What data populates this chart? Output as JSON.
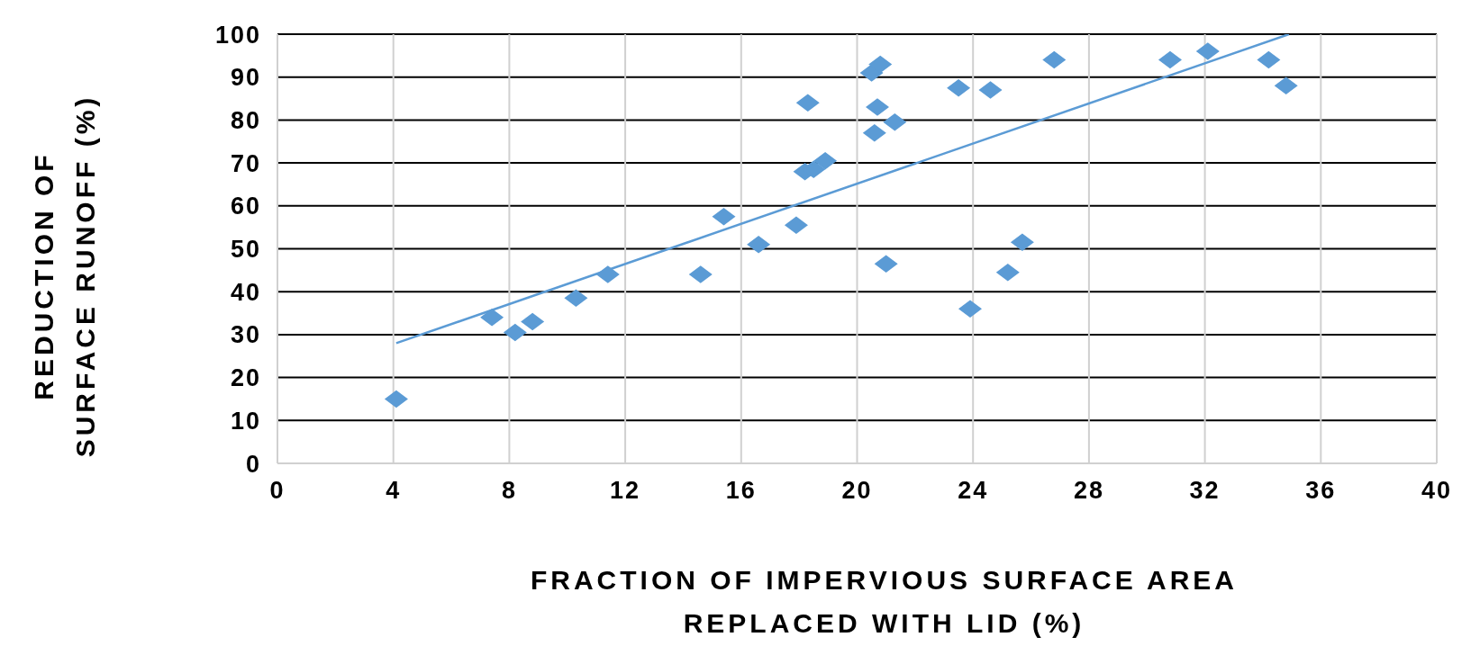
{
  "chart_data": {
    "type": "scatter",
    "xlabel": "FRACTION OF IMPERVIOUS SURFACE AREA REPLACED WITH LID (%)",
    "ylabel": "REDUCTION OF SURFACE RUNOFF (%)",
    "xlim": [
      0,
      40
    ],
    "xticks": [
      0,
      4,
      8,
      12,
      16,
      20,
      24,
      28,
      32,
      36,
      40
    ],
    "ylim": [
      0,
      100
    ],
    "yticks": [
      0,
      10,
      20,
      30,
      40,
      50,
      60,
      70,
      80,
      90,
      100
    ],
    "grid": true,
    "series": [
      {
        "marker": "diamond",
        "color": "#5b9bd5",
        "x": [
          4.1,
          7.4,
          8.2,
          8.8,
          10.3,
          11.4,
          14.6,
          15.4,
          16.6,
          17.9,
          18.3,
          18.2,
          18.5,
          18.9,
          20.5,
          20.8,
          20.7,
          20.6,
          21.3,
          21.0,
          23.5,
          24.6,
          23.9,
          25.2,
          25.7,
          26.8,
          30.8,
          32.1,
          34.2,
          34.8
        ],
        "values": [
          15,
          34,
          30.5,
          33,
          38.5,
          44,
          44,
          57.5,
          51,
          55.5,
          84,
          68,
          68.5,
          70.5,
          91,
          93,
          83,
          77,
          79.5,
          46.5,
          87.5,
          87,
          36,
          44.5,
          51.5,
          94,
          94,
          96,
          94,
          88
        ]
      },
      {
        "type": "line",
        "color": "#5b9bd5",
        "x": [
          4.1,
          34.9
        ],
        "values": [
          28,
          100
        ]
      }
    ]
  }
}
